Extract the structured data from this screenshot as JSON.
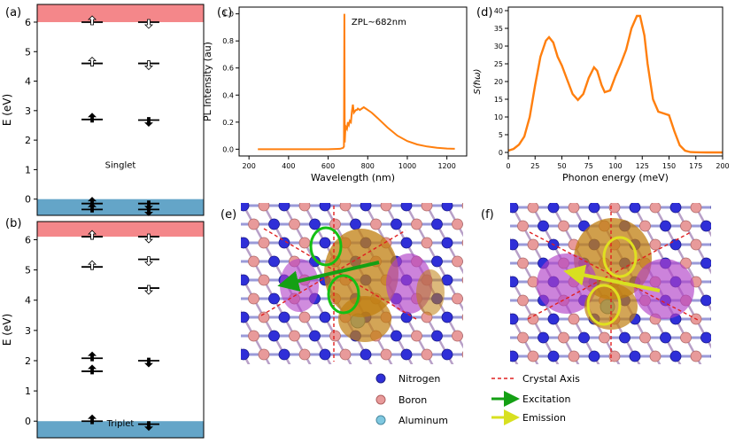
{
  "panel_labels": {
    "a": "(a)",
    "b": "(b)",
    "c": "(c)",
    "d": "(d)",
    "e": "(e)",
    "f": "(f)"
  },
  "colors": {
    "conduction": "#f4878a",
    "valence": "#64a5c8",
    "line": "#ff7f0e",
    "nitrogen": "#2f2fd8",
    "boron": "#e89a9a",
    "aluminum": "#7fc8e0",
    "excitation": "#14a014",
    "emission": "#d8e020",
    "axis": "#e02020",
    "lobe_a": "#c07f10",
    "lobe_b": "#b040c8"
  },
  "chart_data": [
    {
      "id": "a",
      "type": "energy-level-diagram",
      "ylabel": "E (eV)",
      "ylim": [
        -0.55,
        6.6
      ],
      "yticks": [
        0,
        1,
        2,
        3,
        4,
        5,
        6
      ],
      "bands": {
        "valence_below": 0,
        "conduction_above": 6.0
      },
      "annotation": "Singlet",
      "levels": [
        {
          "channel": "up",
          "e": 6.0,
          "spin": "up",
          "occupied": false
        },
        {
          "channel": "down",
          "e": 6.0,
          "spin": "down",
          "occupied": false
        },
        {
          "channel": "up",
          "e": 4.6,
          "spin": "up",
          "occupied": false
        },
        {
          "channel": "down",
          "e": 4.6,
          "spin": "down",
          "occupied": false
        },
        {
          "channel": "up",
          "e": 2.7,
          "spin": "up",
          "occupied": true
        },
        {
          "channel": "down",
          "e": 2.68,
          "spin": "down",
          "occupied": true
        },
        {
          "channel": "up",
          "e": -0.15,
          "spin": "up",
          "occupied": true
        },
        {
          "channel": "down",
          "e": -0.15,
          "spin": "down",
          "occupied": true
        },
        {
          "channel": "up",
          "e": -0.35,
          "spin": "up",
          "occupied": true
        },
        {
          "channel": "down",
          "e": -0.35,
          "spin": "down",
          "occupied": true
        }
      ]
    },
    {
      "id": "b",
      "type": "energy-level-diagram",
      "ylabel": "E (eV)",
      "ylim": [
        -0.55,
        6.6
      ],
      "yticks": [
        0,
        1,
        2,
        3,
        4,
        5,
        6
      ],
      "bands": {
        "valence_below": 0,
        "conduction_above": 6.1
      },
      "annotation": "Triplet",
      "levels": [
        {
          "channel": "up",
          "e": 6.1,
          "spin": "up",
          "occupied": false
        },
        {
          "channel": "down",
          "e": 6.1,
          "spin": "down",
          "occupied": false
        },
        {
          "channel": "up",
          "e": 5.1,
          "spin": "up",
          "occupied": false
        },
        {
          "channel": "down",
          "e": 5.35,
          "spin": "down",
          "occupied": false
        },
        {
          "channel": "down",
          "e": 4.4,
          "spin": "down",
          "occupied": false
        },
        {
          "channel": "up",
          "e": 2.08,
          "spin": "up",
          "occupied": true
        },
        {
          "channel": "up",
          "e": 1.65,
          "spin": "up",
          "occupied": true
        },
        {
          "channel": "down",
          "e": 2.0,
          "spin": "down",
          "occupied": true
        },
        {
          "channel": "up",
          "e": 0.0,
          "spin": "up",
          "occupied": true
        },
        {
          "channel": "down",
          "e": -0.1,
          "spin": "down",
          "occupied": true
        }
      ]
    },
    {
      "id": "c",
      "type": "line",
      "xlabel": "Wavelength (nm)",
      "ylabel": "PL Intensity (au)",
      "xlim": [
        150,
        1300
      ],
      "ylim": [
        -0.05,
        1.05
      ],
      "xticks": [
        200,
        400,
        600,
        800,
        1000,
        1200
      ],
      "yticks": [
        0.0,
        0.2,
        0.4,
        0.6,
        0.8,
        1.0
      ],
      "annotation": "ZPL~682nm",
      "x": [
        245,
        600,
        660,
        676,
        680,
        682,
        684,
        688,
        695,
        700,
        705,
        710,
        715,
        720,
        725,
        730,
        735,
        740,
        745,
        750,
        760,
        770,
        780,
        790,
        800,
        820,
        850,
        900,
        950,
        1000,
        1050,
        1100,
        1150,
        1200,
        1240
      ],
      "y": [
        0.0,
        0.0,
        0.003,
        0.01,
        0.02,
        1.0,
        0.05,
        0.17,
        0.15,
        0.2,
        0.18,
        0.21,
        0.2,
        0.28,
        0.33,
        0.27,
        0.28,
        0.29,
        0.29,
        0.3,
        0.29,
        0.3,
        0.31,
        0.3,
        0.29,
        0.27,
        0.23,
        0.16,
        0.1,
        0.06,
        0.035,
        0.02,
        0.01,
        0.005,
        0.003
      ]
    },
    {
      "id": "d",
      "type": "line",
      "xlabel": "Phonon energy (meV)",
      "ylabel": "S(ℏω)",
      "xlim": [
        0,
        200
      ],
      "ylim": [
        -1,
        41
      ],
      "xticks": [
        0,
        25,
        50,
        75,
        100,
        125,
        150,
        175,
        200
      ],
      "yticks": [
        0,
        5,
        10,
        15,
        20,
        25,
        30,
        35,
        40
      ],
      "x": [
        0,
        5,
        10,
        15,
        20,
        25,
        30,
        35,
        38,
        42,
        46,
        50,
        55,
        60,
        65,
        70,
        75,
        80,
        83,
        87,
        90,
        95,
        100,
        105,
        110,
        115,
        120,
        123,
        127,
        130,
        135,
        140,
        145,
        150,
        155,
        160,
        165,
        170,
        175,
        180,
        185,
        190,
        195,
        200
      ],
      "y": [
        0.5,
        1.0,
        2.2,
        4.5,
        10.0,
        19.0,
        27.0,
        31.5,
        32.5,
        31.0,
        27.0,
        24.5,
        20.5,
        16.5,
        14.8,
        16.5,
        21.0,
        24.0,
        23.0,
        19.0,
        17.0,
        17.5,
        21.5,
        25.0,
        29.0,
        35.0,
        38.5,
        38.5,
        33.0,
        25.0,
        15.0,
        11.5,
        11.0,
        10.5,
        6.0,
        2.0,
        0.5,
        0.1,
        0.05,
        0.02,
        0.01,
        0.0,
        0.0,
        0.0
      ]
    }
  ],
  "legend": {
    "nitrogen": "Nitrogen",
    "boron": "Boron",
    "aluminum": "Aluminum",
    "crystal_axis": "Crystal Axis",
    "excitation": "Excitation",
    "emission": "Emission"
  }
}
